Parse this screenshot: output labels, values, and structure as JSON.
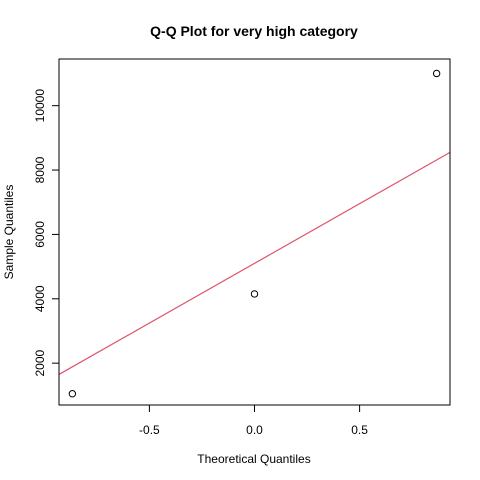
{
  "chart_data": {
    "type": "scatter",
    "title": "Q-Q Plot for very high category",
    "xlabel": "Theoretical Quantiles",
    "ylabel": "Sample Quantiles",
    "xlim": [
      -0.93,
      0.93
    ],
    "ylim": [
      700,
      11450
    ],
    "xticks": [
      -0.5,
      0.0,
      0.5
    ],
    "xtick_labels": [
      "-0.5",
      "0.0",
      "0.5"
    ],
    "yticks": [
      2000,
      4000,
      6000,
      8000,
      10000
    ],
    "ytick_labels": [
      "2000",
      "4000",
      "6000",
      "8000",
      "10000"
    ],
    "points": [
      {
        "x": -0.8664,
        "y": 1050
      },
      {
        "x": 0.0,
        "y": 4150
      },
      {
        "x": 0.8664,
        "y": 11000
      }
    ],
    "reference_line": {
      "color": "#DF536B",
      "x0": -0.93,
      "y0": 1650,
      "x1": 0.93,
      "y1": 8550
    },
    "point_color": "#000000",
    "grid": false,
    "legend": "none"
  }
}
